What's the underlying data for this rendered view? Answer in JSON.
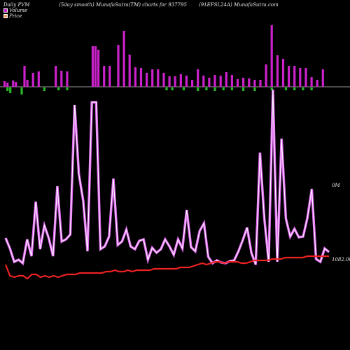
{
  "header": {
    "left": "Daily PVM",
    "center_left": "(5day smooth) MunafaSutra(TM) charts for 937795",
    "center_right": "(91EFSL24A) MunafaSutra.com"
  },
  "legend": {
    "volume_label": "Volume",
    "price_label": "Price"
  },
  "labels": {
    "volume_value": "0M",
    "price_value": "1082.00"
  },
  "colors": {
    "background": "#000000",
    "volume_up": "#cc22cc",
    "volume_down": "#22bb22",
    "volume_line": "#dd66ee",
    "price_line": "#ee2222",
    "baseline": "#999999"
  },
  "chart_data": {
    "type": "line",
    "series": [
      {
        "name": "Volume",
        "chart": "bar",
        "values": [
          8,
          6,
          0,
          9,
          7,
          0,
          0,
          30,
          10,
          0,
          20,
          0,
          22,
          0,
          0,
          0,
          0,
          0,
          30,
          0,
          23,
          0,
          22,
          0,
          0,
          0,
          0,
          0,
          0,
          0,
          0,
          58,
          58,
          53,
          0,
          30,
          0,
          30,
          0,
          0,
          60,
          0,
          80,
          0,
          46,
          0,
          28,
          0,
          27,
          0,
          20,
          0,
          25,
          0,
          25,
          0,
          20,
          0,
          15,
          0,
          15,
          0,
          18,
          0,
          16,
          0,
          10,
          0,
          25,
          0,
          16,
          0,
          13,
          0,
          17,
          0,
          16,
          0,
          21,
          0,
          17,
          0,
          11,
          0,
          13,
          0,
          12,
          0,
          10,
          0,
          10,
          0,
          32,
          0,
          88,
          0,
          45,
          0,
          40,
          0,
          30,
          0,
          30,
          0,
          27,
          0,
          27,
          0,
          14,
          0,
          10,
          0,
          25
        ],
        "down_values": [
          0,
          -5,
          -8,
          0,
          0,
          0,
          -10,
          0,
          0,
          0,
          0,
          0,
          0,
          0,
          -5,
          0,
          0,
          0,
          0,
          -4,
          0,
          0,
          -4,
          0,
          0,
          0,
          0,
          0,
          0,
          0,
          0,
          0,
          0,
          0,
          0,
          0,
          0,
          0,
          0,
          0,
          0,
          0,
          0,
          0,
          0,
          0,
          0,
          0,
          0,
          0,
          0,
          0,
          0,
          0,
          0,
          0,
          0,
          -4,
          0,
          -4,
          0,
          0,
          0,
          -4,
          0,
          0,
          0,
          0,
          -5,
          0,
          0,
          -4,
          0,
          0,
          -5,
          0,
          0,
          -4,
          0,
          0,
          -4,
          0,
          0,
          0,
          -5,
          0,
          0,
          0,
          -5,
          0,
          0,
          0,
          0,
          0,
          -4,
          0,
          0,
          0,
          0,
          -4,
          0,
          0,
          -4,
          0,
          0,
          -4,
          0,
          0,
          -4,
          0,
          0,
          0,
          0,
          0,
          0,
          0,
          0,
          0,
          0
        ]
      },
      {
        "name": "Volume",
        "chart": "line",
        "values": [
          340,
          355,
          374,
          371,
          376,
          342,
          366,
          288,
          356,
          322,
          340,
          366,
          266,
          345,
          342,
          335,
          150,
          249,
          287,
          359,
          146,
          146,
          356,
          352,
          338,
          255,
          350,
          345,
          328,
          352,
          356,
          344,
          342,
          371,
          354,
          361,
          356,
          342,
          352,
          364,
          342,
          355,
          300,
          353,
          359,
          330,
          319,
          367,
          376,
          372,
          375,
          376,
          373,
          372,
          359,
          343,
          325,
          361,
          378,
          218,
          312,
          374,
          128,
          374,
          198,
          312,
          338,
          327,
          339,
          338,
          311,
          270,
          370,
          374,
          355,
          360
        ]
      },
      {
        "name": "Price",
        "chart": "line",
        "y_label": "1082.00",
        "values": [
          1076,
          1068,
          1067,
          1068,
          1068,
          1066,
          1069,
          1069,
          1067,
          1068,
          1067,
          1068,
          1067,
          1068,
          1069,
          1069,
          1069,
          1070,
          1070,
          1070,
          1070,
          1070,
          1070,
          1071,
          1071,
          1072,
          1071,
          1071,
          1072,
          1071,
          1072,
          1072,
          1072,
          1072,
          1073,
          1073,
          1073,
          1073,
          1073,
          1073,
          1074,
          1074,
          1074,
          1075,
          1076,
          1077,
          1076,
          1077,
          1078,
          1078,
          1077,
          1078,
          1078,
          1078,
          1077,
          1077,
          1078,
          1079,
          1079,
          1079,
          1079,
          1080,
          1080,
          1080,
          1081,
          1081,
          1081,
          1081,
          1081,
          1082,
          1082,
          1082,
          1082,
          1082,
          1082
        ]
      }
    ]
  }
}
